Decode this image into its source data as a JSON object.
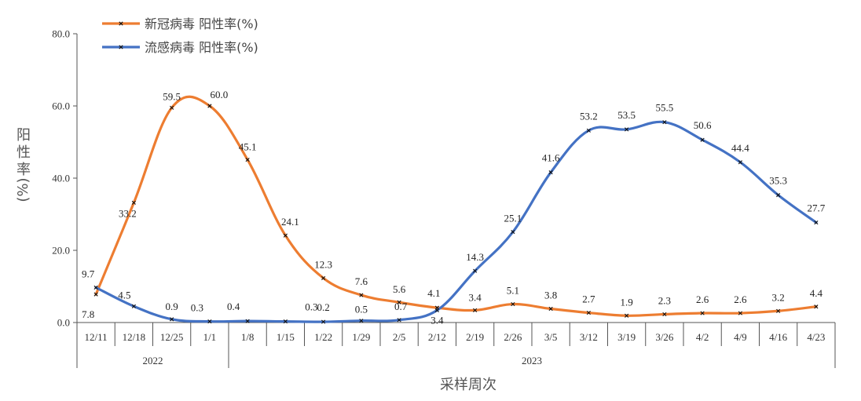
{
  "chart_data": {
    "type": "line",
    "xlabel": "采样周次",
    "ylabel": "阳性率(%)",
    "ylim": [
      0,
      80
    ],
    "yticks": [
      "0.0",
      "20.0",
      "40.0",
      "60.0",
      "80.0"
    ],
    "categories": [
      "12/11",
      "12/18",
      "12/25",
      "1/1",
      "1/8",
      "1/15",
      "1/22",
      "1/29",
      "2/5",
      "2/12",
      "2/19",
      "2/26",
      "3/5",
      "3/12",
      "3/19",
      "3/26",
      "4/2",
      "4/9",
      "4/16",
      "4/23"
    ],
    "year_groups": [
      {
        "label": "2022",
        "start": 0,
        "end": 3
      },
      {
        "label": "2023",
        "start": 4,
        "end": 19
      }
    ],
    "legend_position": "top-left",
    "series": [
      {
        "name": "新冠病毒 阳性率(%)",
        "color": "#ED7D31",
        "values": [
          7.8,
          33.2,
          59.5,
          60.0,
          45.1,
          24.1,
          12.3,
          7.6,
          5.6,
          4.1,
          3.4,
          5.1,
          3.8,
          2.7,
          1.9,
          2.3,
          2.6,
          2.6,
          3.2,
          4.4
        ],
        "labels": [
          "7.8",
          "33.2",
          "59.5",
          "60.0",
          "45.1",
          "24.1",
          "12.3",
          "7.6",
          "5.6",
          "4.1",
          "3.4",
          "5.1",
          "3.8",
          "2.7",
          "1.9",
          "2.3",
          "2.6",
          "2.6",
          "3.2",
          "4.4"
        ]
      },
      {
        "name": "流感病毒 阳性率(%)",
        "color": "#4472C4",
        "values": [
          9.7,
          4.5,
          0.9,
          0.3,
          0.4,
          0.3,
          0.2,
          0.5,
          0.7,
          3.4,
          14.3,
          25.1,
          41.6,
          53.2,
          53.5,
          55.5,
          50.6,
          44.4,
          35.3,
          27.7
        ],
        "labels": [
          "9.7",
          "4.5",
          "0.9",
          "0.3",
          "0.4",
          "0.3",
          "0.2",
          "0.5",
          "0.7",
          "3.4",
          "14.3",
          "25.1",
          "41.6",
          "53.2",
          "53.5",
          "55.5",
          "50.6",
          "44.4",
          "35.3",
          "27.7"
        ]
      }
    ]
  }
}
